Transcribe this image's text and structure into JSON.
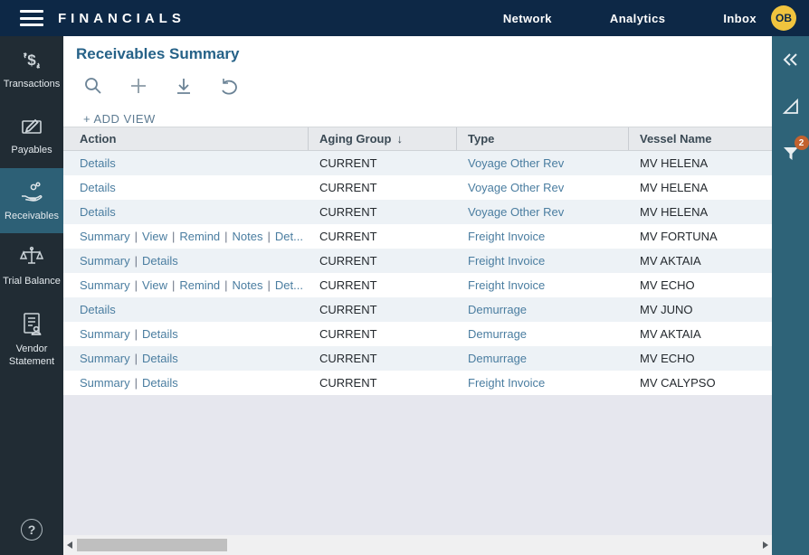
{
  "topbar": {
    "brand": "FINANCIALS",
    "nav": [
      {
        "label": "Network"
      },
      {
        "label": "Analytics"
      },
      {
        "label": "Inbox"
      }
    ],
    "avatar_initials": "OB"
  },
  "sidebar": {
    "items": [
      {
        "id": "transactions",
        "label": "Transactions",
        "icon": "dollar-exchange-icon",
        "selected": false
      },
      {
        "id": "payables",
        "label": "Payables",
        "icon": "pen-document-icon",
        "selected": false
      },
      {
        "id": "receivables",
        "label": "Receivables",
        "icon": "hand-coins-icon",
        "selected": true
      },
      {
        "id": "trial-balance",
        "label": "Trial Balance",
        "icon": "scales-icon",
        "selected": false
      },
      {
        "id": "vendor-statement",
        "label": "Vendor Statement",
        "icon": "vendor-document-icon",
        "selected": false
      }
    ],
    "help_icon": "?"
  },
  "page": {
    "title": "Receivables Summary",
    "add_view_label": "+ ADD VIEW",
    "toolbar": [
      {
        "icon": "search-icon"
      },
      {
        "icon": "add-icon"
      },
      {
        "icon": "download-icon"
      },
      {
        "icon": "undo-icon"
      }
    ]
  },
  "right_panel": {
    "collapse_icon": "chevron-double-left-icon",
    "pointer_icon": "triangle-ruler-icon",
    "filter_icon": "filter-funnel-icon",
    "filter_badge_count": "2"
  },
  "table": {
    "columns": [
      {
        "label": "Action"
      },
      {
        "label": "Aging Group",
        "sort_indicator": "↓"
      },
      {
        "label": "Type"
      },
      {
        "label": "Vessel Name"
      }
    ],
    "rows": [
      {
        "actions": [
          "Details"
        ],
        "aging_group": "CURRENT",
        "type": "Voyage Other Rev",
        "vessel": "MV HELENA"
      },
      {
        "actions": [
          "Details"
        ],
        "aging_group": "CURRENT",
        "type": "Voyage Other Rev",
        "vessel": "MV HELENA"
      },
      {
        "actions": [
          "Details"
        ],
        "aging_group": "CURRENT",
        "type": "Voyage Other Rev",
        "vessel": "MV HELENA"
      },
      {
        "actions": [
          "Summary",
          "View",
          "Remind",
          "Notes",
          "Det..."
        ],
        "aging_group": "CURRENT",
        "type": "Freight Invoice",
        "vessel": "MV FORTUNA"
      },
      {
        "actions": [
          "Summary",
          "Details"
        ],
        "aging_group": "CURRENT",
        "type": "Freight Invoice",
        "vessel": "MV AKTAIA"
      },
      {
        "actions": [
          "Summary",
          "View",
          "Remind",
          "Notes",
          "Det..."
        ],
        "aging_group": "CURRENT",
        "type": "Freight Invoice",
        "vessel": "MV ECHO"
      },
      {
        "actions": [
          "Details"
        ],
        "aging_group": "CURRENT",
        "type": "Demurrage",
        "vessel": "MV JUNO"
      },
      {
        "actions": [
          "Summary",
          "Details"
        ],
        "aging_group": "CURRENT",
        "type": "Demurrage",
        "vessel": "MV AKTAIA"
      },
      {
        "actions": [
          "Summary",
          "Details"
        ],
        "aging_group": "CURRENT",
        "type": "Demurrage",
        "vessel": "MV ECHO"
      },
      {
        "actions": [
          "Summary",
          "Details"
        ],
        "aging_group": "CURRENT",
        "type": "Freight Invoice",
        "vessel": "MV CALYPSO"
      }
    ]
  },
  "colors": {
    "topbar_navy": "#0d2846",
    "sidebar_dark": "#212c34",
    "selected_teal": "#2d6076",
    "panel_teal": "#2e6378",
    "title_blue": "#266288",
    "link_steel": "#4a7da0",
    "avatar_gold": "#f0c43e",
    "badge_orange": "#c2622f",
    "row_alt": "#edf2f6",
    "canvas_gray": "#e6e7ee"
  }
}
